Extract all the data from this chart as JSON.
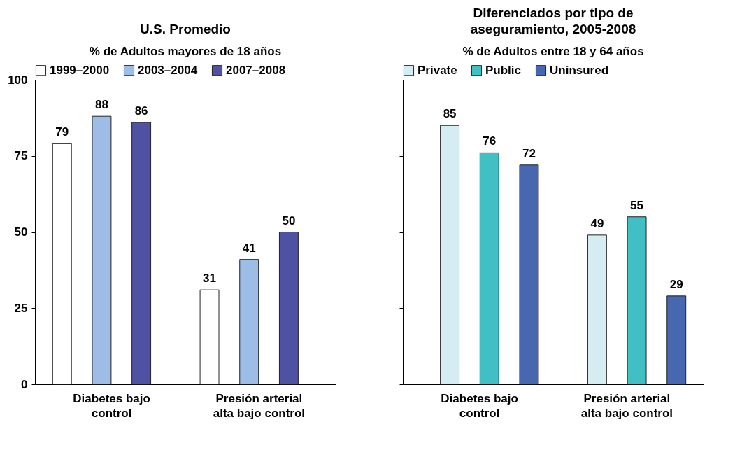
{
  "chart_data": [
    {
      "type": "bar",
      "title": "U.S. Promedio",
      "subtitle": "% de Adultos mayores de 18 años",
      "categories": [
        "Diabetes bajo control",
        "Presión arterial alta bajo control"
      ],
      "series": [
        {
          "name": "1999–2000",
          "color": "#ffffff",
          "values": [
            79,
            31
          ]
        },
        {
          "name": "2003–2004",
          "color": "#9dbde6",
          "values": [
            88,
            41
          ]
        },
        {
          "name": "2007–2008",
          "color": "#4f51a3",
          "values": [
            86,
            50
          ]
        }
      ],
      "ylim": [
        0,
        100
      ],
      "yticks": [
        0,
        25,
        50,
        75,
        100
      ],
      "data_labels": true,
      "legend": "top",
      "grid": false
    },
    {
      "type": "bar",
      "title": "Diferenciados por tipo de aseguramiento, 2005-2008",
      "subtitle": "% de Adultos entre 18 y 64 años",
      "categories": [
        "Diabetes bajo control",
        "Presión arterial alta bajo control"
      ],
      "series": [
        {
          "name": "Private",
          "color": "#d5ecf2",
          "values": [
            85,
            49
          ]
        },
        {
          "name": "Public",
          "color": "#40c0c4",
          "values": [
            76,
            55
          ]
        },
        {
          "name": "Uninsured",
          "color": "#4767b0",
          "values": [
            72,
            29
          ]
        }
      ],
      "ylim": [
        0,
        100
      ],
      "yticks": [
        {
          "value": 0,
          "label": null
        },
        {
          "value": 25,
          "label": null
        },
        {
          "value": 50,
          "label": null
        },
        {
          "value": 75,
          "label": null
        },
        {
          "value": 100,
          "label": null
        }
      ],
      "tick_labels": "x",
      "data_labels": true,
      "legend": "top",
      "grid": false
    }
  ]
}
